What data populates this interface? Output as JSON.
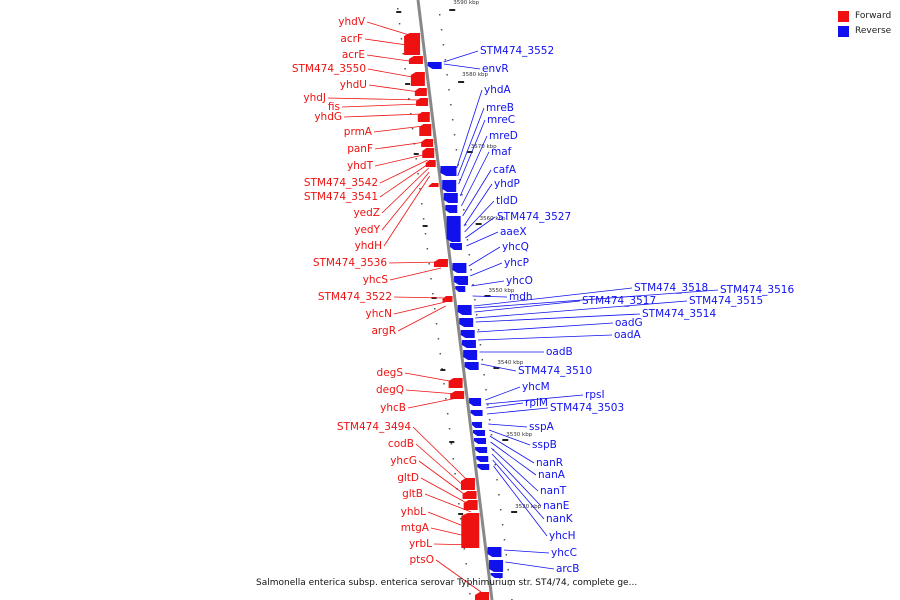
{
  "legend": [
    {
      "label": "Forward",
      "color": "#ee1111"
    },
    {
      "label": "Reverse",
      "color": "#1111ee"
    }
  ],
  "caption": "Salmonella enterica subsp. enterica serovar Typhimurium str. ST4/74, complete ge...",
  "colors": {
    "forward": "#ee1111",
    "reverse": "#1111ee",
    "backbone": "#888888"
  },
  "ticks": [
    "3590 kbp",
    "3580 kbp",
    "3570 kbp",
    "3560 kbp",
    "3550 kbp",
    "3540 kbp",
    "3530 kbp",
    "3520 kbp"
  ],
  "forward_genes": [
    "yhdV",
    "acrF",
    "acrE",
    "STM474_3550",
    "yhdU",
    "yhdJ",
    "fis",
    "yhdG",
    "prmA",
    "panF",
    "yhdT",
    "STM474_3542",
    "STM474_3541",
    "yedZ",
    "yedY",
    "yhdH",
    "STM474_3536",
    "yhcS",
    "STM474_3522",
    "yhcN",
    "argR",
    "degS",
    "degQ",
    "yhcB",
    "STM474_3494",
    "codB",
    "yhcG",
    "gltD",
    "gltB",
    "yhbL",
    "mtgA",
    "yrbL",
    "ptsO"
  ],
  "reverse_genes": [
    "STM474_3552",
    "envR",
    "yhdA",
    "mreB",
    "mreC",
    "mreD",
    "maf",
    "cafA",
    "yhdP",
    "tldD",
    "STM474_3527",
    "aaeX",
    "yhcQ",
    "yhcP",
    "yhcO",
    "mdh",
    "STM474_3518",
    "STM474_3516",
    "STM474_3517",
    "STM474_3515",
    "STM474_3514",
    "oadG",
    "oadA",
    "oadB",
    "STM474_3510",
    "yhcM",
    "rpsI",
    "rplM",
    "STM474_3503",
    "sspA",
    "sspB",
    "nanR",
    "nanA",
    "nanT",
    "nanE",
    "nanK",
    "yhcH",
    "yhcC",
    "arcB"
  ]
}
